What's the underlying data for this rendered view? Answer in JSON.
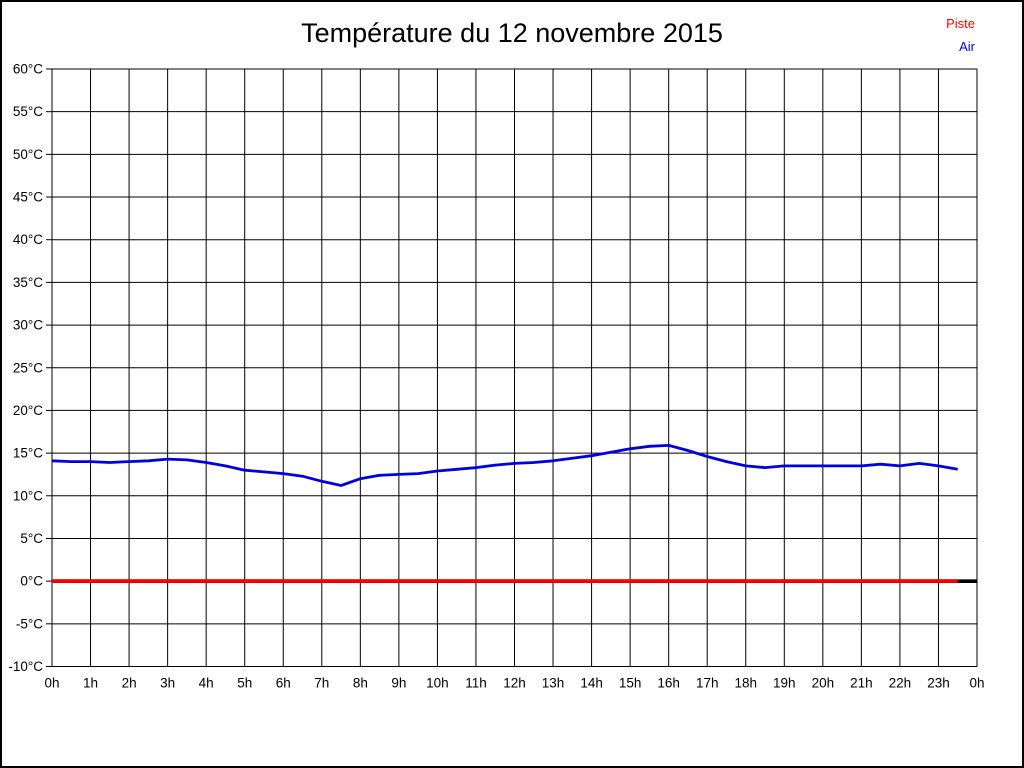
{
  "title": "Température du 12 novembre 2015",
  "legend": {
    "items": [
      {
        "label": "Piste",
        "color": "#ff0000"
      },
      {
        "label": "Air",
        "color": "#0000e0"
      }
    ]
  },
  "chart_data": {
    "type": "line",
    "title": "Température du 12 novembre 2015",
    "xlabel": "",
    "ylabel": "",
    "x_unit": "hours",
    "xlim": [
      0,
      24
    ],
    "ylim": [
      -10,
      60
    ],
    "ystep": 5,
    "grid": true,
    "legend_position": "top-right",
    "zero_line": {
      "value": 0,
      "color": "#000000"
    },
    "xtick_labels": [
      "0h",
      "1h",
      "2h",
      "3h",
      "4h",
      "5h",
      "6h",
      "7h",
      "8h",
      "9h",
      "10h",
      "11h",
      "12h",
      "13h",
      "14h",
      "15h",
      "16h",
      "17h",
      "18h",
      "19h",
      "20h",
      "21h",
      "22h",
      "23h",
      "0h"
    ],
    "ytick_labels": [
      "60°C",
      "55°C",
      "50°C",
      "45°C",
      "40°C",
      "35°C",
      "30°C",
      "25°C",
      "20°C",
      "15°C",
      "10°C",
      "5°C",
      "0°C",
      "-5°C",
      "-10°C"
    ],
    "x": [
      0,
      0.5,
      1,
      1.5,
      2,
      2.5,
      3,
      3.5,
      4,
      4.5,
      5,
      5.5,
      6,
      6.5,
      7,
      7.5,
      8,
      8.5,
      9,
      9.5,
      10,
      10.5,
      11,
      11.5,
      12,
      12.5,
      13,
      13.5,
      14,
      14.5,
      15,
      15.5,
      16,
      16.5,
      17,
      17.5,
      18,
      18.5,
      19,
      19.5,
      20,
      20.5,
      21,
      21.5,
      22,
      22.5,
      23,
      23.5
    ],
    "series": [
      {
        "name": "Piste",
        "color": "#ff0000",
        "values": [
          0,
          0,
          0,
          0,
          0,
          0,
          0,
          0,
          0,
          0,
          0,
          0,
          0,
          0,
          0,
          0,
          0,
          0,
          0,
          0,
          0,
          0,
          0,
          0,
          0,
          0,
          0,
          0,
          0,
          0,
          0,
          0,
          0,
          0,
          0,
          0,
          0,
          0,
          0,
          0,
          0,
          0,
          0,
          0,
          0,
          0,
          0,
          0
        ]
      },
      {
        "name": "Air",
        "color": "#0000e0",
        "values": [
          14.1,
          14.0,
          14.0,
          13.9,
          14.0,
          14.1,
          14.3,
          14.2,
          13.9,
          13.5,
          13.0,
          12.8,
          12.6,
          12.3,
          11.7,
          11.2,
          12.0,
          12.4,
          12.5,
          12.6,
          12.9,
          13.1,
          13.3,
          13.6,
          13.8,
          13.9,
          14.1,
          14.4,
          14.7,
          15.1,
          15.5,
          15.8,
          15.9,
          15.3,
          14.6,
          14.0,
          13.5,
          13.3,
          13.5,
          13.5,
          13.5,
          13.5,
          13.5,
          13.7,
          13.5,
          13.8,
          13.5,
          13.1
        ]
      }
    ]
  }
}
